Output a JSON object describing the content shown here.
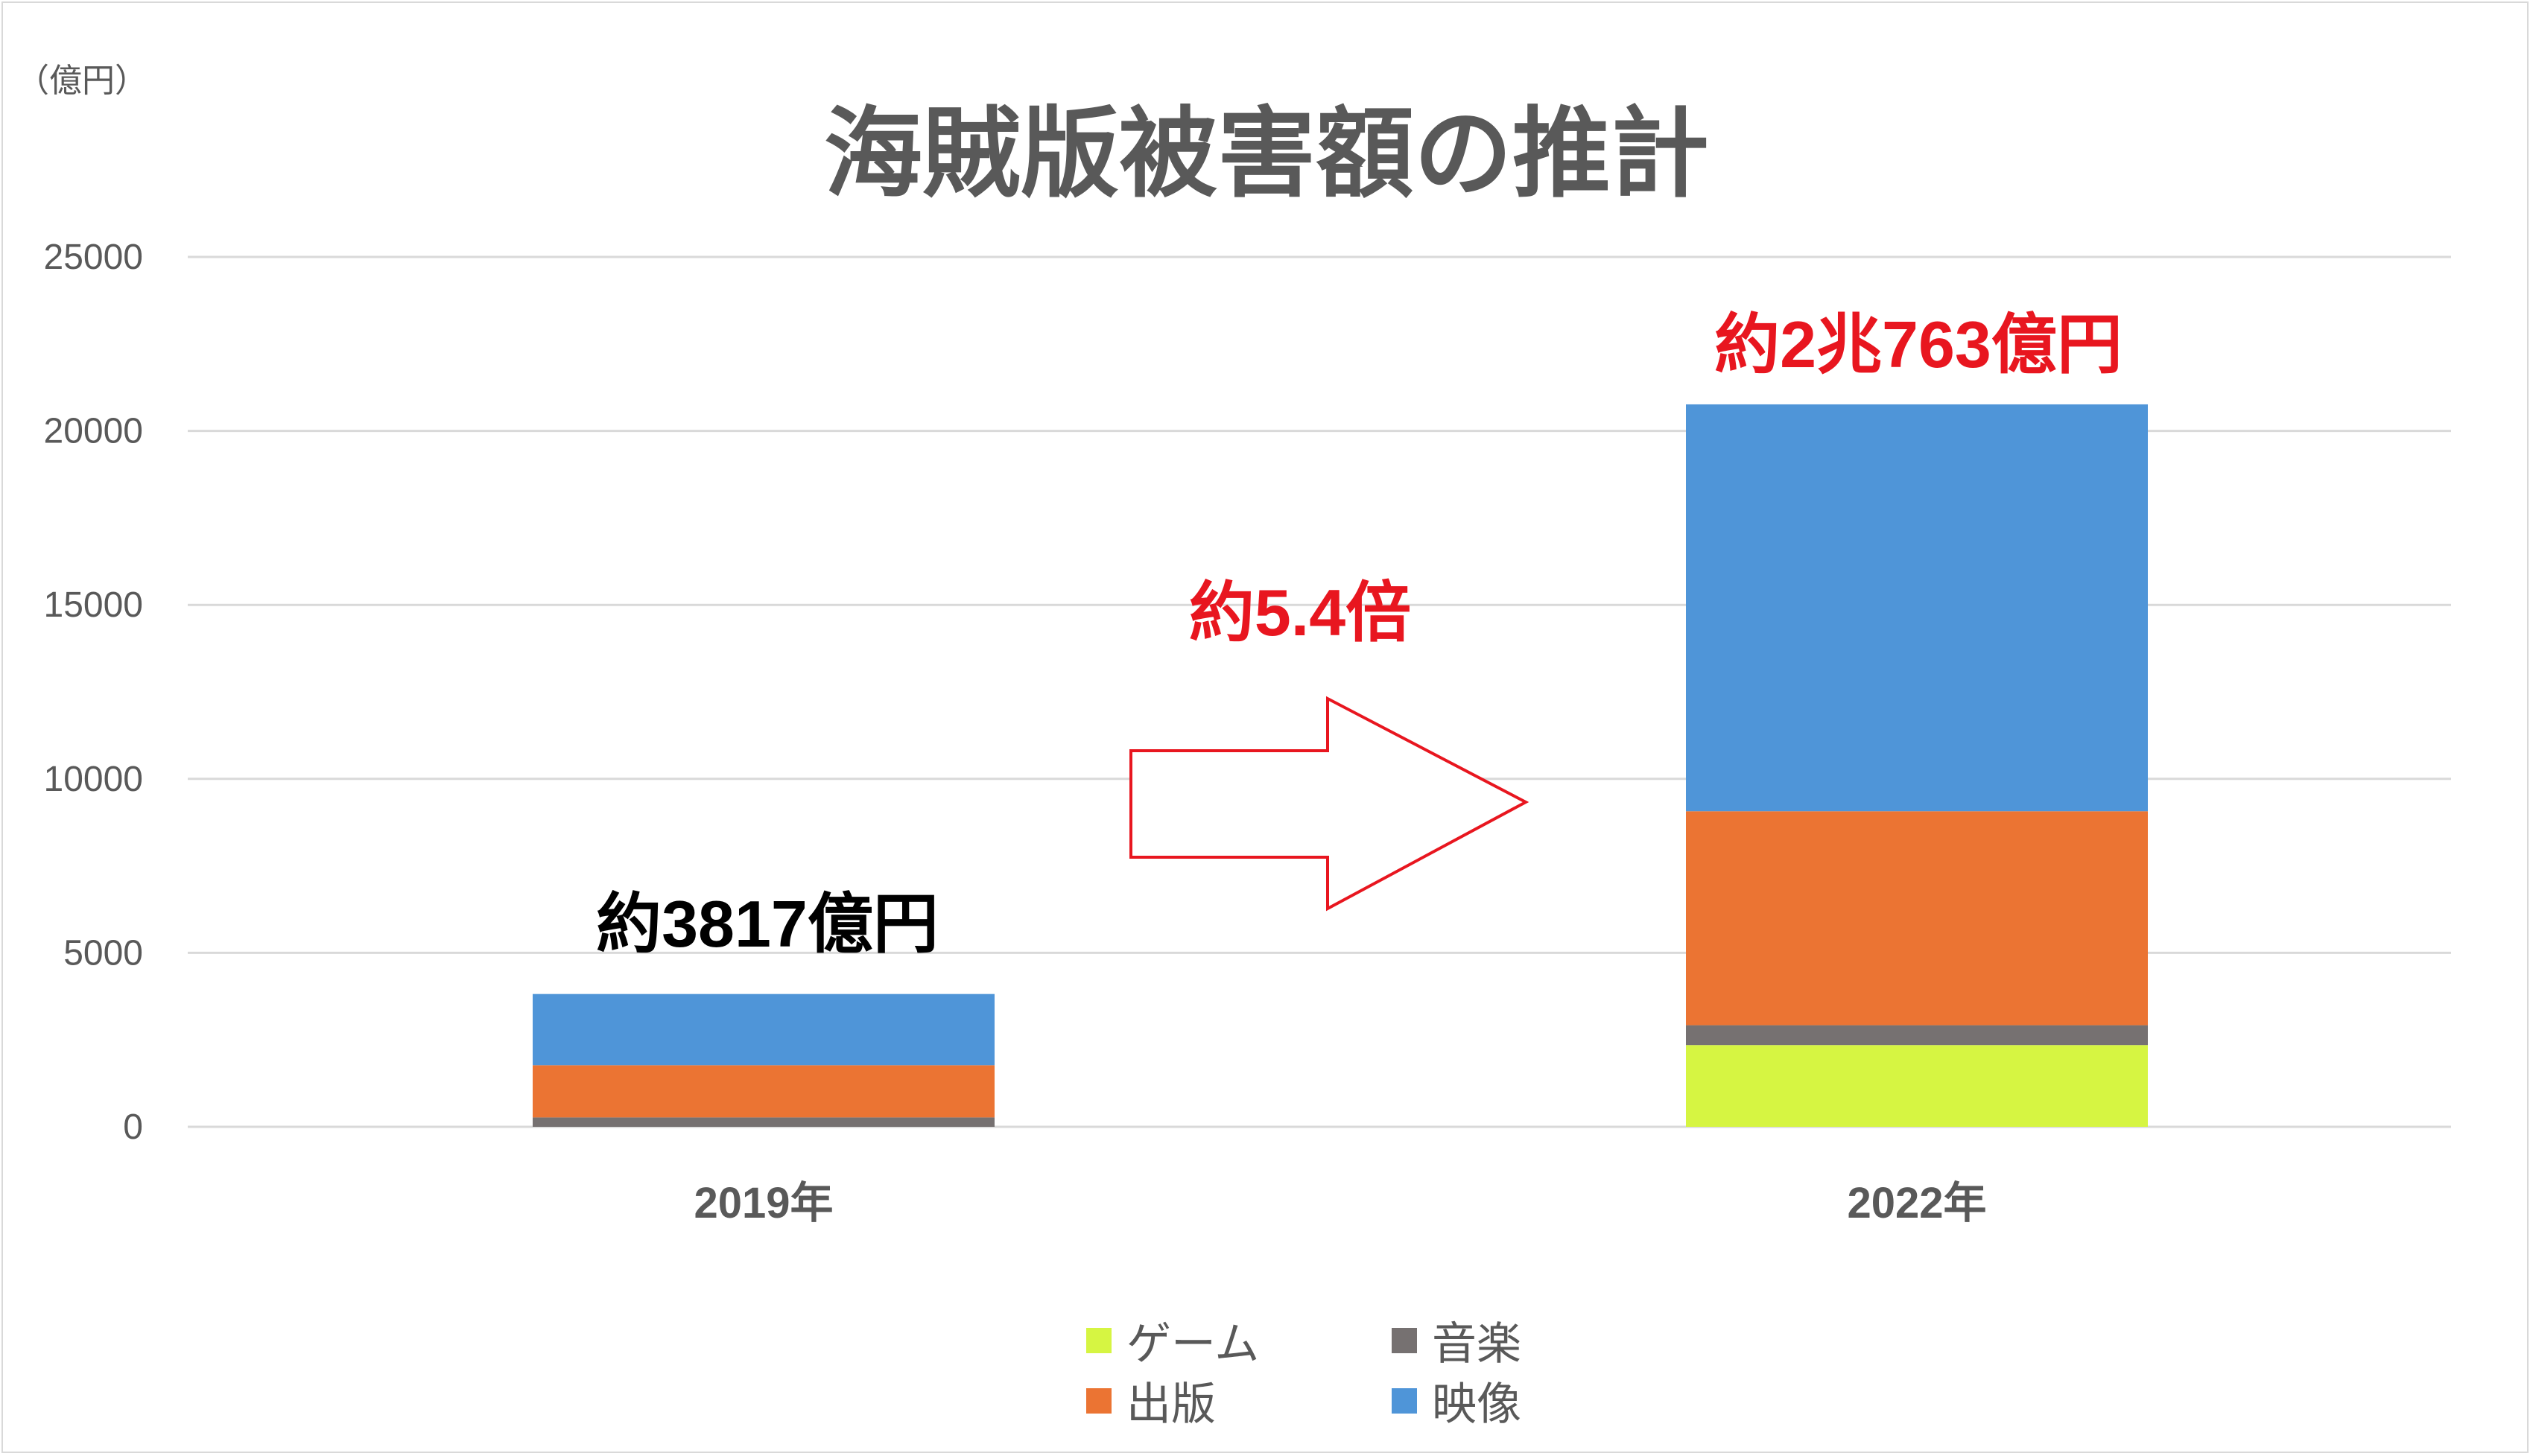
{
  "chart_data": {
    "type": "bar",
    "stacked": true,
    "title": "海賊版被害額の推計",
    "unit_label": "（億円）",
    "categories": [
      "2019年",
      "2022年"
    ],
    "series": [
      {
        "name": "ゲーム",
        "color": "#d6f542",
        "values": [
          0,
          2350
        ]
      },
      {
        "name": "音楽",
        "color": "#767171",
        "values": [
          270,
          570
        ]
      },
      {
        "name": "出版",
        "color": "#eb7433",
        "values": [
          1500,
          6150
        ]
      },
      {
        "name": "映像",
        "color": "#4f95d8",
        "values": [
          2047,
          11693
        ]
      }
    ],
    "yticks": [
      "0",
      "5000",
      "10000",
      "15000",
      "20000",
      "25000"
    ],
    "ylim": [
      0,
      25000
    ],
    "grid": true,
    "legend_position": "bottom",
    "annotations": {
      "total_2019": "約3817億円",
      "total_2022": "約2兆763億円",
      "growth": "約5.4倍"
    },
    "annotation_colors": {
      "total_2019": "#000000",
      "total_2022": "#e8161f",
      "growth": "#e8161f",
      "arrow": "#e8161f"
    }
  }
}
